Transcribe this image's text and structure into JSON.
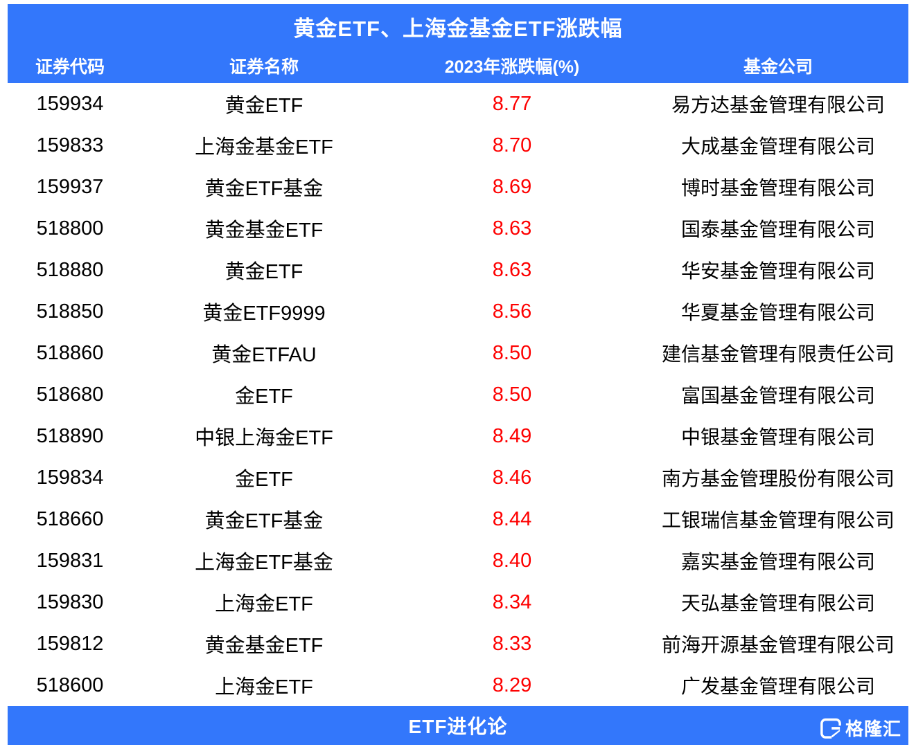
{
  "chart_data": {
    "type": "table",
    "title": "黄金ETF、上海金基金ETF涨跌幅",
    "columns": [
      "证券代码",
      "证券名称",
      "2023年涨跌幅(%)",
      "基金公司"
    ],
    "rows": [
      {
        "code": "159934",
        "name": "黄金ETF",
        "change_pct": "8.77",
        "company": "易方达基金管理有限公司"
      },
      {
        "code": "159833",
        "name": "上海金基金ETF",
        "change_pct": "8.70",
        "company": "大成基金管理有限公司"
      },
      {
        "code": "159937",
        "name": "黄金ETF基金",
        "change_pct": "8.69",
        "company": "博时基金管理有限公司"
      },
      {
        "code": "518800",
        "name": "黄金基金ETF",
        "change_pct": "8.63",
        "company": "国泰基金管理有限公司"
      },
      {
        "code": "518880",
        "name": "黄金ETF",
        "change_pct": "8.63",
        "company": "华安基金管理有限公司"
      },
      {
        "code": "518850",
        "name": "黄金ETF9999",
        "change_pct": "8.56",
        "company": "华夏基金管理有限公司"
      },
      {
        "code": "518860",
        "name": "黄金ETFAU",
        "change_pct": "8.50",
        "company": "建信基金管理有限责任公司"
      },
      {
        "code": "518680",
        "name": "金ETF",
        "change_pct": "8.50",
        "company": "富国基金管理有限公司"
      },
      {
        "code": "518890",
        "name": "中银上海金ETF",
        "change_pct": "8.49",
        "company": "中银基金管理有限公司"
      },
      {
        "code": "159834",
        "name": "金ETF",
        "change_pct": "8.46",
        "company": "南方基金管理股份有限公司"
      },
      {
        "code": "518660",
        "name": "黄金ETF基金",
        "change_pct": "8.44",
        "company": "工银瑞信基金管理有限公司"
      },
      {
        "code": "159831",
        "name": "上海金ETF基金",
        "change_pct": "8.40",
        "company": "嘉实基金管理有限公司"
      },
      {
        "code": "159830",
        "name": "上海金ETF",
        "change_pct": "8.34",
        "company": "天弘基金管理有限公司"
      },
      {
        "code": "159812",
        "name": "黄金基金ETF",
        "change_pct": "8.33",
        "company": "前海开源基金管理有限公司"
      },
      {
        "code": "518600",
        "name": "上海金ETF",
        "change_pct": "8.29",
        "company": "广发基金管理有限公司"
      }
    ],
    "value_column_color_note": "change_pct values rendered in red"
  },
  "footer": {
    "label": "ETF进化论",
    "brand": "格隆汇",
    "brand_icon": "gelonghui-g-icon"
  },
  "colors": {
    "accent_blue": "#3377FB",
    "value_red": "#FE0000",
    "body_text": "#000000",
    "header_text": "#FFFFFF"
  }
}
